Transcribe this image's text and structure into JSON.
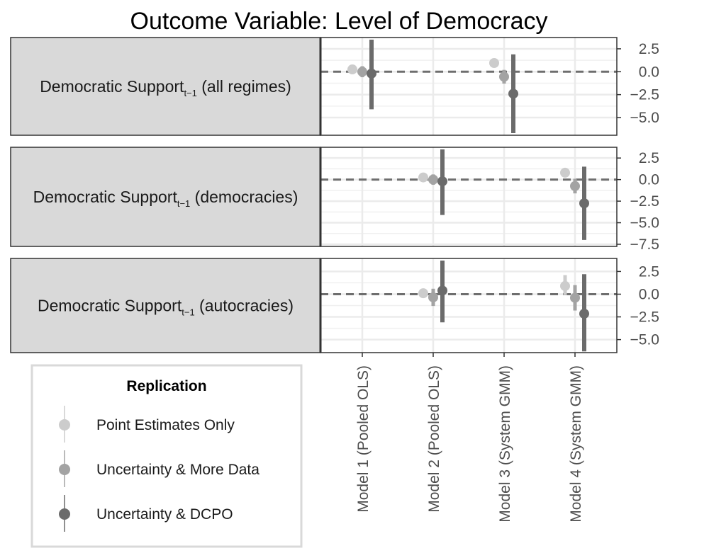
{
  "chart_data": {
    "type": "scatter",
    "subtype": "coefficient-plot-with-error-bars",
    "title": "Outcome Variable: Level of Democracy",
    "categories": [
      "Model 1 (Pooled OLS)",
      "Model 2 (Pooled OLS)",
      "Model 3 (System GMM)",
      "Model 4 (System GMM)"
    ],
    "legend": {
      "title": "Replication",
      "placement": "bottom-left",
      "items": [
        {
          "name": "Point Estimates Only",
          "color": "#cccccc"
        },
        {
          "name": "Uncertainty & More Data",
          "color": "#a3a3a3"
        },
        {
          "name": "Uncertainty & DCPO",
          "color": "#6b6b6b"
        }
      ]
    },
    "reference_line": 0,
    "grid": true,
    "panels": [
      {
        "label_main": "Democratic Support",
        "label_sub": "t−1",
        "label_tail": " (all regimes)",
        "ylim": [
          -6.7,
          3.5
        ],
        "yticks": [
          2.5,
          0.0,
          -2.5,
          -5.0
        ],
        "ytick_labels": [
          "2.5",
          "0.0",
          "−2.5",
          "−5.0"
        ],
        "series": [
          {
            "name": "Point Estimates Only",
            "points": [
              {
                "model": "Model 1 (Pooled OLS)",
                "est": 0.25,
                "lo": null,
                "hi": null
              },
              {
                "model": "Model3 (System GMM)",
                "est": 0.95,
                "lo": null,
                "hi": null
              }
            ]
          },
          {
            "name": "Uncertainty & More Data",
            "points": [
              {
                "model": "Model 1 (Pooled OLS)",
                "est": 0.0,
                "lo": -0.6,
                "hi": 0.6
              },
              {
                "model": "Model 3 (System GMM)",
                "est": -0.55,
                "lo": -1.3,
                "hi": 0.2
              }
            ]
          },
          {
            "name": "Uncertainty & DCPO",
            "points": [
              {
                "model": "Model 1 (Pooled OLS)",
                "est": -0.2,
                "lo": -4.1,
                "hi": 3.5
              },
              {
                "model": "Model 3 (System GMM)",
                "est": -2.4,
                "lo": -6.7,
                "hi": 1.9
              }
            ]
          }
        ]
      },
      {
        "label_main": "Democratic Support",
        "label_sub": "t−1",
        "label_tail": " (democracies)",
        "ylim": [
          -7.5,
          3.5
        ],
        "yticks": [
          2.5,
          0.0,
          -2.5,
          -5.0,
          -7.5
        ],
        "ytick_labels": [
          "2.5",
          "0.0",
          "−2.5",
          "−5.0",
          "−7.5"
        ],
        "series": [
          {
            "name": "Point Estimates Only",
            "points": [
              {
                "model": "Model 2 (Pooled OLS)",
                "est": 0.25,
                "lo": null,
                "hi": null
              },
              {
                "model": "Model 4 (System GMM)",
                "est": 0.8,
                "lo": null,
                "hi": null
              }
            ]
          },
          {
            "name": "Uncertainty & More Data",
            "points": [
              {
                "model": "Model 2 (Pooled OLS)",
                "est": 0.0,
                "lo": -0.6,
                "hi": 0.6
              },
              {
                "model": "Model 4 (System GMM)",
                "est": -0.75,
                "lo": -1.6,
                "hi": 0.1
              }
            ]
          },
          {
            "name": "Uncertainty & DCPO",
            "points": [
              {
                "model": "Model 2 (Pooled OLS)",
                "est": -0.2,
                "lo": -4.1,
                "hi": 3.5
              },
              {
                "model": "Model 4 (System GMM)",
                "est": -2.75,
                "lo": -7.0,
                "hi": 1.5
              }
            ]
          }
        ]
      },
      {
        "label_main": "Democratic Support",
        "label_sub": "t−1",
        "label_tail": " (autocracies)",
        "ylim": [
          -6.2,
          3.7
        ],
        "yticks": [
          2.5,
          0.0,
          -2.5,
          -5.0
        ],
        "ytick_labels": [
          "2.5",
          "0.0",
          "−2.5",
          "−5.0"
        ],
        "series": [
          {
            "name": "Point Estimates Only",
            "points": [
              {
                "model": "Model 2 (Pooled OLS)",
                "est": 0.1,
                "lo": null,
                "hi": null
              },
              {
                "model": "Model 4 (System GMM)",
                "est": 0.9,
                "lo": -0.1,
                "hi": 2.1
              }
            ]
          },
          {
            "name": "Uncertainty & More Data",
            "points": [
              {
                "model": "Model 2 (Pooled OLS)",
                "est": -0.35,
                "lo": -1.3,
                "hi": 0.6
              },
              {
                "model": "Model 4 (System GMM)",
                "est": -0.4,
                "lo": -1.8,
                "hi": 1.0
              }
            ]
          },
          {
            "name": "Uncertainty & DCPO",
            "points": [
              {
                "model": "Model 2 (Pooled OLS)",
                "est": 0.4,
                "lo": -3.1,
                "hi": 3.7
              },
              {
                "model": "Model 4 (System GMM)",
                "est": -2.15,
                "lo": -6.3,
                "hi": 2.2
              }
            ]
          }
        ]
      }
    ]
  }
}
